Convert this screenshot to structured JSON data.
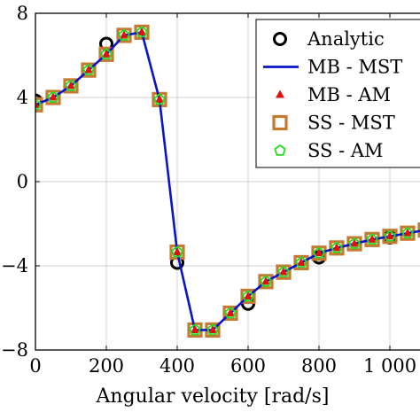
{
  "chart_data": {
    "type": "line",
    "xlabel": "Angular velocity [rad/s]",
    "ylabel": "",
    "xlim": [
      0,
      1100
    ],
    "ylim": [
      -8,
      8
    ],
    "xticks": [
      0,
      200,
      400,
      600,
      800,
      1000
    ],
    "xtick_labels": [
      "0",
      "200",
      "400",
      "600",
      "800",
      "1 000"
    ],
    "yticks": [
      -8,
      -4,
      0,
      4,
      8
    ],
    "ytick_labels": [
      "−8",
      "−4",
      "0",
      "4",
      "8"
    ],
    "grid": true,
    "legend_position": "top-right",
    "series": [
      {
        "name": "Analytic",
        "marker": "open-circle",
        "color": "#000000",
        "x": [
          0,
          200,
          400,
          600,
          800,
          1000,
          1100
        ],
        "y": [
          3.85,
          6.55,
          -3.85,
          -5.8,
          -3.6,
          -2.65,
          -2.4
        ]
      },
      {
        "name": "MB - MST",
        "marker": "line",
        "color": "#0a14c8",
        "x": [
          0,
          50,
          100,
          150,
          200,
          250,
          300,
          350,
          400,
          450,
          500,
          550,
          600,
          650,
          700,
          750,
          800,
          850,
          900,
          950,
          1000,
          1050,
          1100
        ],
        "y": [
          3.65,
          4.0,
          4.55,
          5.3,
          6.05,
          6.95,
          7.1,
          3.9,
          -3.35,
          -7.05,
          -7.05,
          -6.25,
          -5.45,
          -4.75,
          -4.3,
          -3.85,
          -3.4,
          -3.15,
          -2.95,
          -2.75,
          -2.6,
          -2.45,
          -2.3
        ]
      },
      {
        "name": "MB - AM",
        "marker": "triangle",
        "color": "#e01010",
        "x": [
          0,
          50,
          100,
          150,
          200,
          250,
          300,
          350,
          400,
          450,
          500,
          550,
          600,
          650,
          700,
          750,
          800,
          850,
          900,
          950,
          1000,
          1050,
          1100
        ],
        "y": [
          3.65,
          4.0,
          4.55,
          5.3,
          6.05,
          6.95,
          7.1,
          3.9,
          -3.35,
          -7.05,
          -7.05,
          -6.25,
          -5.45,
          -4.75,
          -4.3,
          -3.85,
          -3.4,
          -3.15,
          -2.95,
          -2.75,
          -2.6,
          -2.45,
          -2.3
        ]
      },
      {
        "name": "SS - MST",
        "marker": "open-square",
        "color": "#c47a30",
        "x": [
          0,
          50,
          100,
          150,
          200,
          250,
          300,
          350,
          400,
          450,
          500,
          550,
          600,
          650,
          700,
          750,
          800,
          850,
          900,
          950,
          1000,
          1050,
          1100
        ],
        "y": [
          3.65,
          4.0,
          4.55,
          5.3,
          6.05,
          6.95,
          7.1,
          3.9,
          -3.35,
          -7.05,
          -7.05,
          -6.25,
          -5.45,
          -4.75,
          -4.3,
          -3.85,
          -3.4,
          -3.15,
          -2.95,
          -2.75,
          -2.6,
          -2.45,
          -2.3
        ]
      },
      {
        "name": "SS - AM",
        "marker": "open-pentagon",
        "color": "#22dd22",
        "x": [
          0,
          50,
          100,
          150,
          200,
          250,
          300,
          350,
          400,
          450,
          500,
          550,
          600,
          650,
          700,
          750,
          800,
          850,
          900,
          950,
          1000,
          1050,
          1100
        ],
        "y": [
          3.65,
          4.0,
          4.55,
          5.3,
          6.05,
          6.95,
          7.1,
          3.9,
          -3.35,
          -7.05,
          -7.05,
          -6.25,
          -5.45,
          -4.75,
          -4.3,
          -3.85,
          -3.4,
          -3.15,
          -2.95,
          -2.75,
          -2.6,
          -2.45,
          -2.3
        ]
      }
    ]
  }
}
